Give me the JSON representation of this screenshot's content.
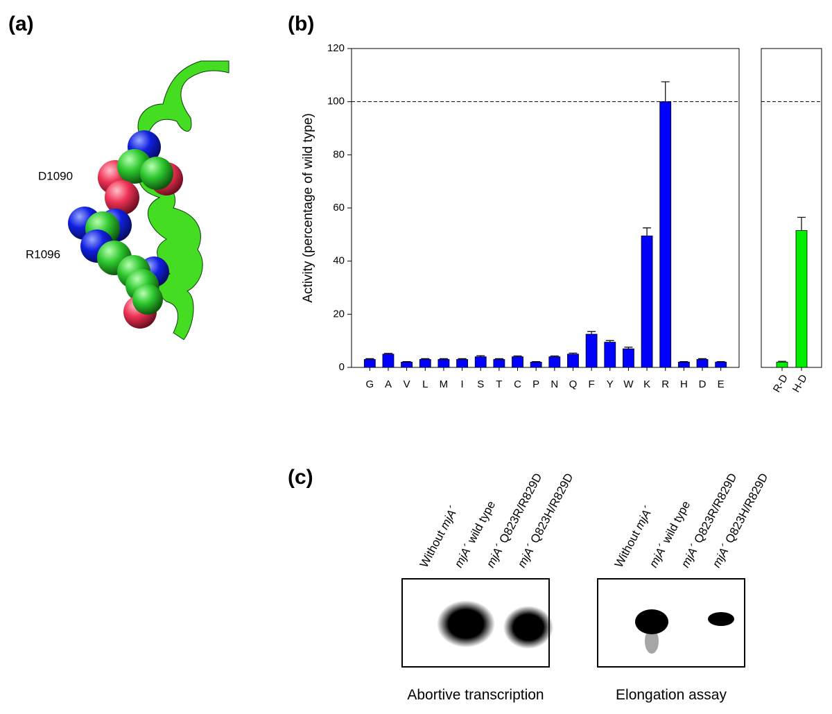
{
  "panels": {
    "a": {
      "label": "(a)",
      "annotations": [
        "D1090",
        "R1096"
      ]
    },
    "b": {
      "label": "(b)"
    },
    "c": {
      "label": "(c)",
      "lanes": [
        {
          "pre": "Without ",
          "gene": "mjA´"
        },
        {
          "gene": "mjA´",
          "post": " wild type"
        },
        {
          "gene": "mjA´",
          "post": " Q823R/R829D"
        },
        {
          "gene": "mjA´",
          "post": " Q823H/R829D"
        }
      ],
      "gels": [
        "Abortive transcription",
        "Elongation assay"
      ]
    }
  },
  "chart_data": [
    {
      "type": "bar",
      "y_label": "Activity (percentage of wild type)",
      "categories": [
        "G",
        "A",
        "V",
        "L",
        "M",
        "I",
        "S",
        "T",
        "C",
        "P",
        "N",
        "Q",
        "F",
        "Y",
        "W",
        "K",
        "R",
        "H",
        "D",
        "E"
      ],
      "values": [
        3,
        5,
        2,
        3,
        3,
        3,
        4,
        3,
        4,
        2,
        4,
        5,
        12.5,
        9.5,
        7,
        49.5,
        100,
        2,
        3,
        2
      ],
      "errors": [
        0.3,
        0.3,
        0.2,
        0.3,
        0.3,
        0.3,
        0.4,
        0.3,
        0.3,
        0.2,
        0.3,
        0.4,
        1,
        0.6,
        0.6,
        3,
        7.5,
        0.2,
        0.3,
        0.2
      ],
      "color": "#0000ff",
      "ylim": [
        0,
        120
      ],
      "yticks": [
        0,
        20,
        40,
        60,
        80,
        100,
        120
      ],
      "reference_line": 100
    },
    {
      "type": "bar",
      "categories": [
        "R-D",
        "H-D"
      ],
      "values": [
        2,
        51.5
      ],
      "errors": [
        0.3,
        5
      ],
      "color": "#00ee00",
      "ylim": [
        0,
        120
      ],
      "reference_line": 100
    }
  ]
}
